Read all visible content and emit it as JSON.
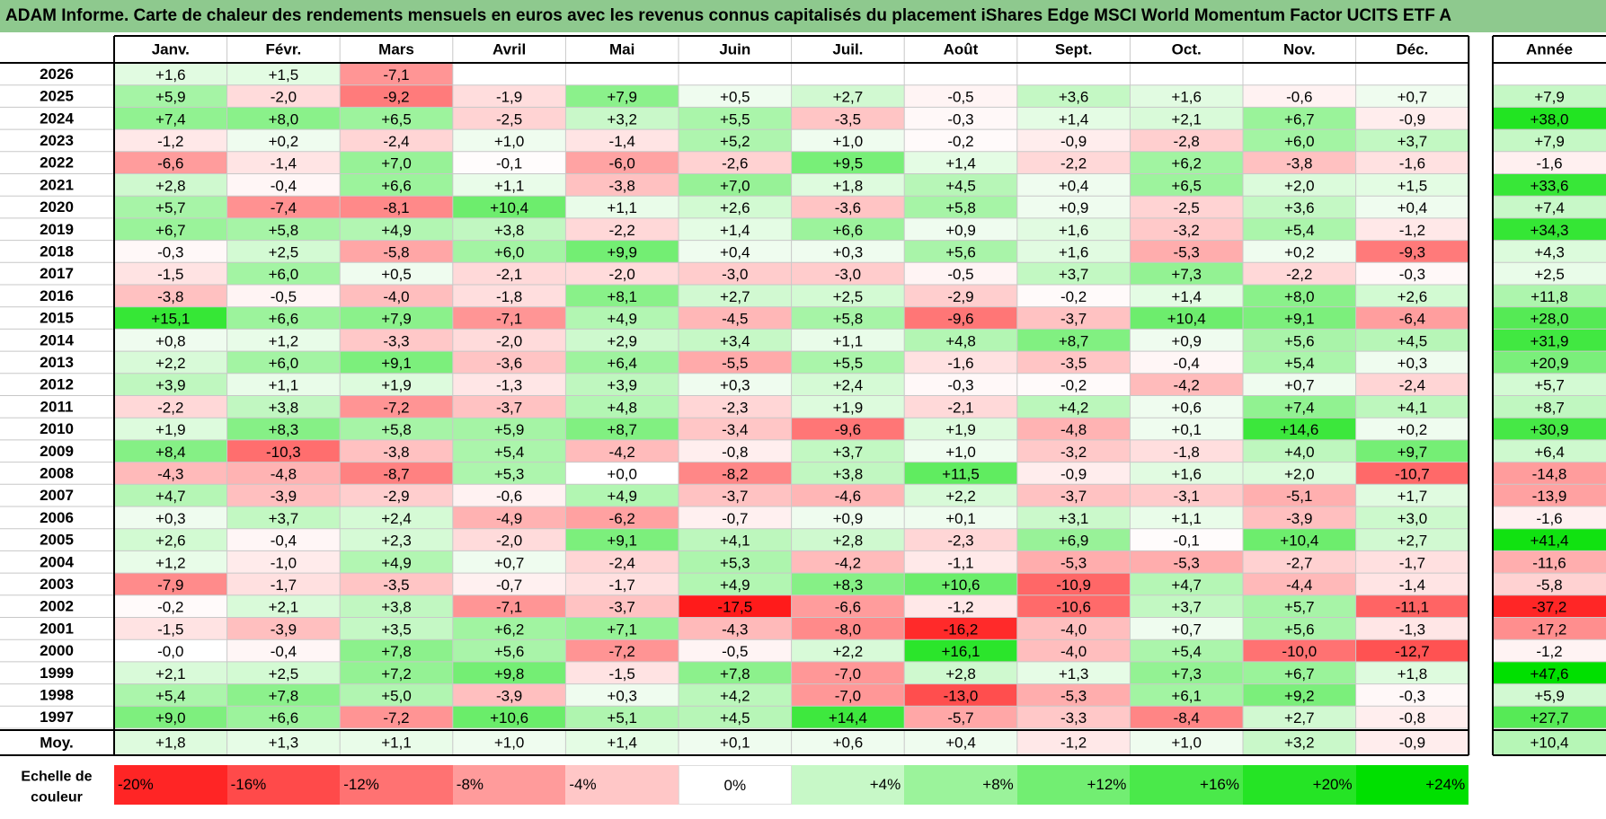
{
  "title": "ADAM Informe. Carte de chaleur des rendements mensuels en euros avec les revenus connus capitalisés du placement iShares Edge MSCI World Momentum Factor UCITS ETF A",
  "colors": {
    "title_bg": "#8ec98e",
    "positive_max": "#00e000",
    "negative_max": "#ff0000",
    "neutral": "#ffffff"
  },
  "chart_data": {
    "type": "heatmap",
    "title": "ADAM Informe. Carte de chaleur des rendements mensuels en euros avec les revenus connus capitalisés du placement iShares Edge MSCI World Momentum Factor UCITS ETF A",
    "columns": [
      "Janv.",
      "Févr.",
      "Mars",
      "Avril",
      "Mai",
      "Juin",
      "Juil.",
      "Août",
      "Sept.",
      "Oct.",
      "Nov.",
      "Déc."
    ],
    "year_column_label": "Année",
    "rows": [
      {
        "year": "2026",
        "months": [
          "+1,6",
          "+1,5",
          "-7,1",
          "",
          "",
          "",
          "",
          "",
          "",
          "",
          "",
          ""
        ],
        "annual": ""
      },
      {
        "year": "2025",
        "months": [
          "+5,9",
          "-2,0",
          "-9,2",
          "-1,9",
          "+7,9",
          "+0,5",
          "+2,7",
          "-0,5",
          "+3,6",
          "+1,6",
          "-0,6",
          "+0,7"
        ],
        "annual": "+7,9"
      },
      {
        "year": "2024",
        "months": [
          "+7,4",
          "+8,0",
          "+6,5",
          "-2,5",
          "+3,2",
          "+5,5",
          "-3,5",
          "-0,3",
          "+1,4",
          "+2,1",
          "+6,7",
          "-0,9"
        ],
        "annual": "+38,0"
      },
      {
        "year": "2023",
        "months": [
          "-1,2",
          "+0,2",
          "-2,4",
          "+1,0",
          "-1,4",
          "+5,2",
          "+1,0",
          "-0,2",
          "-0,9",
          "-2,8",
          "+6,0",
          "+3,7"
        ],
        "annual": "+7,9"
      },
      {
        "year": "2022",
        "months": [
          "-6,6",
          "-1,4",
          "+7,0",
          "-0,1",
          "-6,0",
          "-2,6",
          "+9,5",
          "+1,4",
          "-2,2",
          "+6,2",
          "-3,8",
          "-1,6"
        ],
        "annual": "-1,6"
      },
      {
        "year": "2021",
        "months": [
          "+2,8",
          "-0,4",
          "+6,6",
          "+1,1",
          "-3,8",
          "+7,0",
          "+1,8",
          "+4,5",
          "+0,4",
          "+6,5",
          "+2,0",
          "+1,5"
        ],
        "annual": "+33,6"
      },
      {
        "year": "2020",
        "months": [
          "+5,7",
          "-7,4",
          "-8,1",
          "+10,4",
          "+1,1",
          "+2,6",
          "-3,6",
          "+5,8",
          "+0,9",
          "-2,5",
          "+3,6",
          "+0,4"
        ],
        "annual": "+7,4"
      },
      {
        "year": "2019",
        "months": [
          "+6,7",
          "+5,8",
          "+4,9",
          "+3,8",
          "-2,2",
          "+1,4",
          "+6,6",
          "+0,9",
          "+1,6",
          "-3,2",
          "+5,4",
          "-1,2"
        ],
        "annual": "+34,3"
      },
      {
        "year": "2018",
        "months": [
          "-0,3",
          "+2,5",
          "-5,8",
          "+6,0",
          "+9,9",
          "+0,4",
          "+0,3",
          "+5,6",
          "+1,6",
          "-5,3",
          "+0,2",
          "-9,3"
        ],
        "annual": "+4,3"
      },
      {
        "year": "2017",
        "months": [
          "-1,5",
          "+6,0",
          "+0,5",
          "-2,1",
          "-2,0",
          "-3,0",
          "-3,0",
          "-0,5",
          "+3,7",
          "+7,3",
          "-2,2",
          "-0,3"
        ],
        "annual": "+2,5"
      },
      {
        "year": "2016",
        "months": [
          "-3,8",
          "-0,5",
          "-4,0",
          "-1,8",
          "+8,1",
          "+2,7",
          "+2,5",
          "-2,9",
          "-0,2",
          "+1,4",
          "+8,0",
          "+2,6"
        ],
        "annual": "+11,8"
      },
      {
        "year": "2015",
        "months": [
          "+15,1",
          "+6,6",
          "+7,9",
          "-7,1",
          "+4,9",
          "-4,5",
          "+5,8",
          "-9,6",
          "-3,7",
          "+10,4",
          "+9,1",
          "-6,4"
        ],
        "annual": "+28,0"
      },
      {
        "year": "2014",
        "months": [
          "+0,8",
          "+1,2",
          "-3,3",
          "-2,0",
          "+2,9",
          "+3,4",
          "+1,1",
          "+4,8",
          "+8,7",
          "+0,9",
          "+5,6",
          "+4,5"
        ],
        "annual": "+31,9"
      },
      {
        "year": "2013",
        "months": [
          "+2,2",
          "+6,0",
          "+9,1",
          "-3,6",
          "+6,4",
          "-5,5",
          "+5,5",
          "-1,6",
          "-3,5",
          "-0,4",
          "+5,4",
          "+0,3"
        ],
        "annual": "+20,9"
      },
      {
        "year": "2012",
        "months": [
          "+3,9",
          "+1,1",
          "+1,9",
          "-1,3",
          "+3,9",
          "+0,3",
          "+2,4",
          "-0,3",
          "-0,2",
          "-4,2",
          "+0,7",
          "-2,4"
        ],
        "annual": "+5,7"
      },
      {
        "year": "2011",
        "months": [
          "-2,2",
          "+3,8",
          "-7,2",
          "-3,7",
          "+4,8",
          "-2,3",
          "+1,9",
          "-2,1",
          "+4,2",
          "+0,6",
          "+7,4",
          "+4,1"
        ],
        "annual": "+8,7"
      },
      {
        "year": "2010",
        "months": [
          "+1,9",
          "+8,3",
          "+5,8",
          "+5,9",
          "+8,7",
          "-3,4",
          "-9,6",
          "+1,9",
          "-4,8",
          "+0,1",
          "+14,6",
          "+0,2"
        ],
        "annual": "+30,9"
      },
      {
        "year": "2009",
        "months": [
          "+8,4",
          "-10,3",
          "-3,8",
          "+5,4",
          "-4,2",
          "-0,8",
          "+3,7",
          "+1,0",
          "-3,2",
          "-1,8",
          "+4,0",
          "+9,7"
        ],
        "annual": "+6,4"
      },
      {
        "year": "2008",
        "months": [
          "-4,3",
          "-4,8",
          "-8,7",
          "+5,3",
          "+0,0",
          "-8,2",
          "+3,8",
          "+11,5",
          "-0,9",
          "+1,6",
          "+2,0",
          "-10,7"
        ],
        "annual": "-14,8"
      },
      {
        "year": "2007",
        "months": [
          "+4,7",
          "-3,9",
          "-2,9",
          "-0,6",
          "+4,9",
          "-3,7",
          "-4,6",
          "+2,2",
          "-3,7",
          "-3,1",
          "-5,1",
          "+1,7"
        ],
        "annual": "-13,9"
      },
      {
        "year": "2006",
        "months": [
          "+0,3",
          "+3,7",
          "+2,4",
          "-4,9",
          "-6,2",
          "-0,7",
          "+0,9",
          "+0,1",
          "+3,1",
          "+1,1",
          "-3,9",
          "+3,0"
        ],
        "annual": "-1,6"
      },
      {
        "year": "2005",
        "months": [
          "+2,6",
          "-0,4",
          "+2,3",
          "-2,0",
          "+9,1",
          "+4,1",
          "+2,8",
          "-2,3",
          "+6,9",
          "-0,1",
          "+10,4",
          "+2,7"
        ],
        "annual": "+41,4"
      },
      {
        "year": "2004",
        "months": [
          "+1,2",
          "-1,0",
          "+4,9",
          "+0,7",
          "-2,4",
          "+5,3",
          "-4,2",
          "-1,1",
          "-5,3",
          "-5,3",
          "-2,7",
          "-1,7"
        ],
        "annual": "-11,6"
      },
      {
        "year": "2003",
        "months": [
          "-7,9",
          "-1,7",
          "-3,5",
          "-0,7",
          "-1,7",
          "+4,9",
          "+8,3",
          "+10,6",
          "-10,9",
          "+4,7",
          "-4,4",
          "-1,4"
        ],
        "annual": "-5,8"
      },
      {
        "year": "2002",
        "months": [
          "-0,2",
          "+2,1",
          "+3,8",
          "-7,1",
          "-3,7",
          "-17,5",
          "-6,6",
          "-1,2",
          "-10,6",
          "+3,7",
          "+5,7",
          "-11,1"
        ],
        "annual": "-37,2"
      },
      {
        "year": "2001",
        "months": [
          "-1,5",
          "-3,9",
          "+3,5",
          "+6,2",
          "+7,1",
          "-4,3",
          "-8,0",
          "-16,2",
          "-4,0",
          "+0,7",
          "+5,6",
          "-1,3"
        ],
        "annual": "-17,2"
      },
      {
        "year": "2000",
        "months": [
          "-0,0",
          "-0,4",
          "+7,8",
          "+5,6",
          "-7,2",
          "-0,5",
          "+2,2",
          "+16,1",
          "-4,0",
          "+5,4",
          "-10,0",
          "-12,7"
        ],
        "annual": "-1,2"
      },
      {
        "year": "1999",
        "months": [
          "+2,1",
          "+2,5",
          "+7,2",
          "+9,8",
          "-1,5",
          "+7,8",
          "-7,0",
          "+2,8",
          "+1,3",
          "+7,3",
          "+6,7",
          "+1,8"
        ],
        "annual": "+47,6"
      },
      {
        "year": "1998",
        "months": [
          "+5,4",
          "+7,8",
          "+5,0",
          "-3,9",
          "+0,3",
          "+4,2",
          "-7,0",
          "-13,0",
          "-5,3",
          "+6,1",
          "+9,2",
          "-0,3"
        ],
        "annual": "+5,9"
      },
      {
        "year": "1997",
        "months": [
          "+9,0",
          "+6,6",
          "-7,2",
          "+10,6",
          "+5,1",
          "+4,5",
          "+14,4",
          "-5,7",
          "-3,3",
          "-8,4",
          "+2,7",
          "-0,8"
        ],
        "annual": "+27,7"
      }
    ],
    "average": {
      "label": "Moy.",
      "months": [
        "+1,8",
        "+1,3",
        "+1,1",
        "+1,0",
        "+1,4",
        "+0,1",
        "+0,6",
        "+0,4",
        "-1,2",
        "+1,0",
        "+3,2",
        "-0,9"
      ],
      "annual": "+10,4"
    },
    "color_scale": {
      "label_line1": "Echelle de",
      "label_line2": "couleur",
      "stops": [
        "-20%",
        "-16%",
        "-12%",
        "-8%",
        "-4%",
        "0%",
        "+4%",
        "+8%",
        "+12%",
        "+16%",
        "+20%",
        "+24%"
      ],
      "values": [
        -20,
        -16,
        -12,
        -8,
        -4,
        0,
        4,
        8,
        12,
        16,
        20,
        24
      ]
    }
  }
}
